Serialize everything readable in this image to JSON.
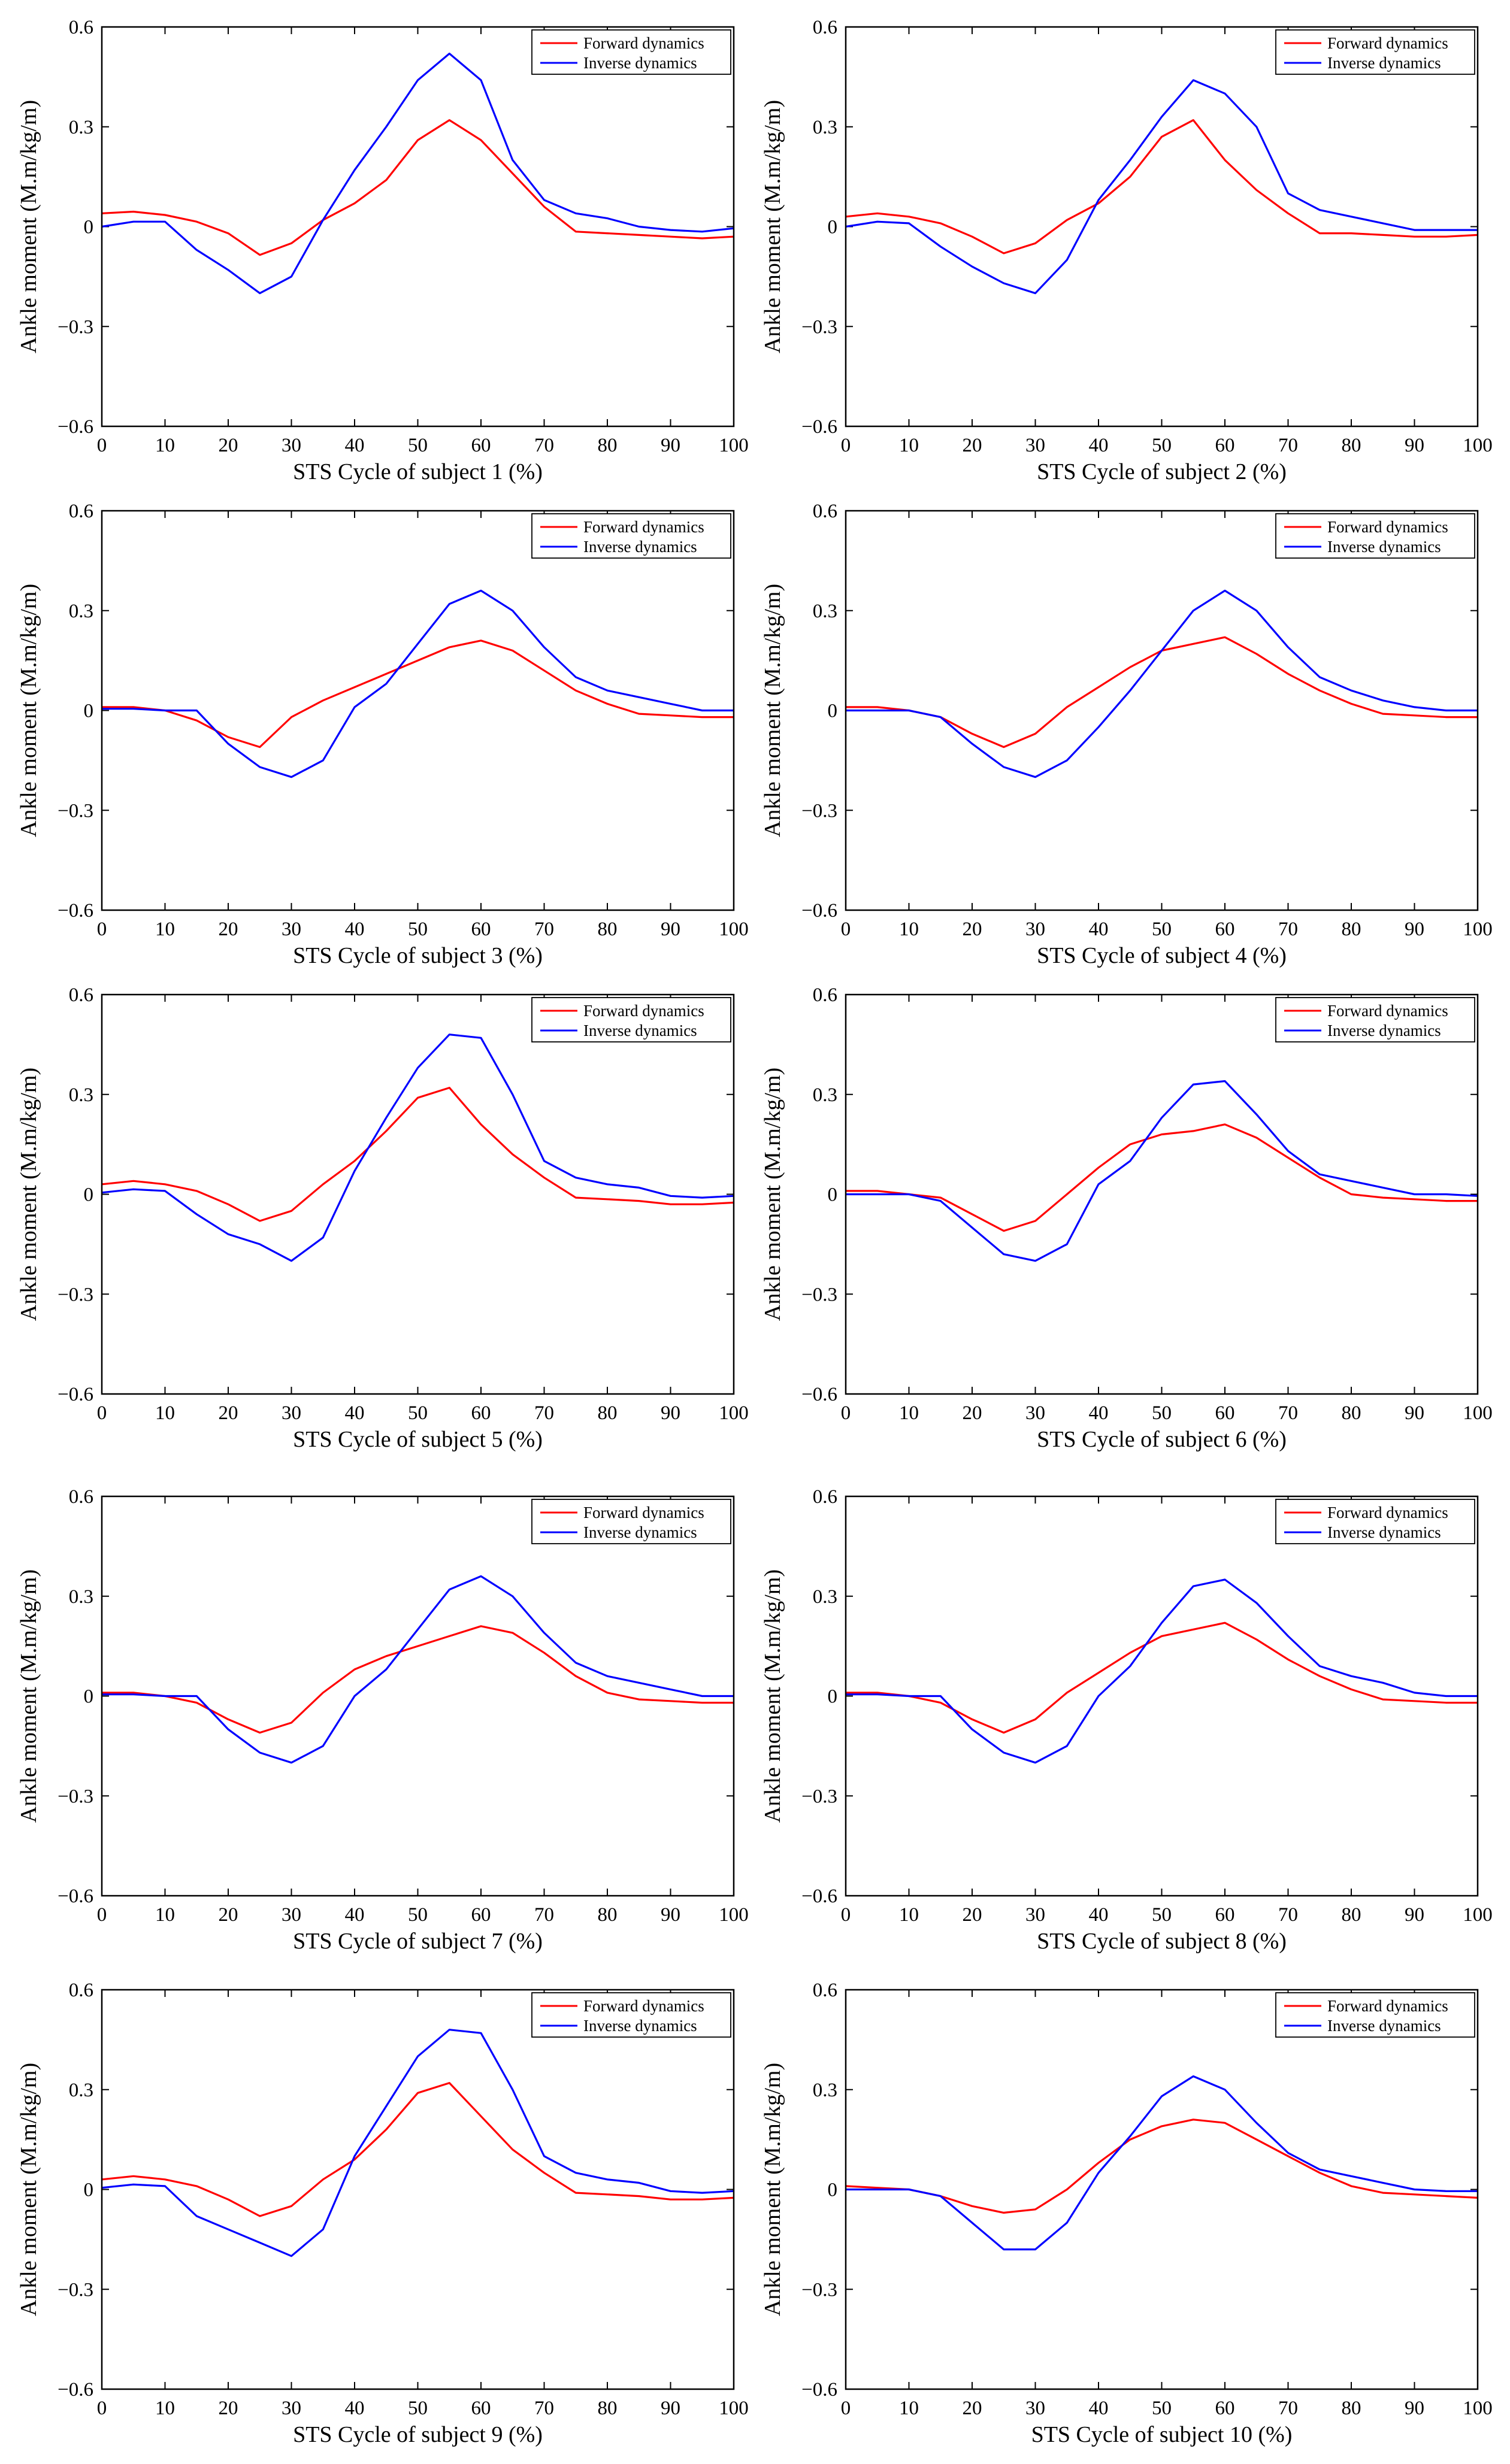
{
  "figure": {
    "ylabel": "Ankle moment (M.m/kg/m)",
    "xticks": [
      "0",
      "10",
      "20",
      "30",
      "40",
      "50",
      "60",
      "70",
      "80",
      "90",
      "100"
    ],
    "yticks": [
      "0.6",
      "0.3",
      "0",
      "−0.3",
      "−0.6"
    ],
    "legend": {
      "forward": "Forward dynamics",
      "inverse": "Inverse dynamics"
    },
    "colors": {
      "forward": "#ff0000",
      "inverse": "#0000ff",
      "axes": "#000000"
    }
  },
  "chart_data": [
    {
      "type": "line",
      "title": "",
      "xlabel": "STS Cycle of subject 1 (%)",
      "ylabel": "Ankle moment (M.m/kg/m)",
      "xlim": [
        0,
        100
      ],
      "ylim": [
        -0.6,
        0.6
      ],
      "legend_position": "top-right",
      "x": [
        0,
        5,
        10,
        15,
        20,
        25,
        30,
        35,
        40,
        45,
        50,
        55,
        60,
        65,
        70,
        75,
        80,
        85,
        90,
        95,
        100
      ],
      "series": [
        {
          "name": "Forward dynamics",
          "values": [
            0.04,
            0.045,
            0.035,
            0.015,
            -0.02,
            -0.085,
            -0.05,
            0.02,
            0.07,
            0.14,
            0.26,
            0.32,
            0.26,
            0.16,
            0.06,
            -0.015,
            -0.02,
            -0.025,
            -0.03,
            -0.035,
            -0.03
          ]
        },
        {
          "name": "Inverse dynamics",
          "values": [
            0.0,
            0.015,
            0.015,
            -0.07,
            -0.13,
            -0.2,
            -0.15,
            0.02,
            0.17,
            0.3,
            0.44,
            0.52,
            0.44,
            0.2,
            0.08,
            0.04,
            0.025,
            0.0,
            -0.01,
            -0.015,
            -0.005
          ]
        }
      ]
    },
    {
      "type": "line",
      "title": "",
      "xlabel": "STS Cycle of subject 2 (%)",
      "ylabel": "Ankle moment (M.m/kg/m)",
      "xlim": [
        0,
        100
      ],
      "ylim": [
        -0.6,
        0.6
      ],
      "legend_position": "top-right",
      "x": [
        0,
        5,
        10,
        15,
        20,
        25,
        30,
        35,
        40,
        45,
        50,
        55,
        60,
        65,
        70,
        75,
        80,
        85,
        90,
        95,
        100
      ],
      "series": [
        {
          "name": "Forward dynamics",
          "values": [
            0.03,
            0.04,
            0.03,
            0.01,
            -0.03,
            -0.08,
            -0.05,
            0.02,
            0.07,
            0.15,
            0.27,
            0.32,
            0.2,
            0.11,
            0.04,
            -0.02,
            -0.02,
            -0.025,
            -0.03,
            -0.03,
            -0.025
          ]
        },
        {
          "name": "Inverse dynamics",
          "values": [
            0.0,
            0.015,
            0.01,
            -0.06,
            -0.12,
            -0.17,
            -0.2,
            -0.1,
            0.08,
            0.2,
            0.33,
            0.44,
            0.4,
            0.3,
            0.1,
            0.05,
            0.03,
            0.01,
            -0.01,
            -0.01,
            -0.01
          ]
        }
      ]
    },
    {
      "type": "line",
      "title": "",
      "xlabel": "STS Cycle of subject 3 (%)",
      "ylabel": "Ankle moment (M.m/kg/m)",
      "xlim": [
        0,
        100
      ],
      "ylim": [
        -0.6,
        0.6
      ],
      "legend_position": "top-right",
      "x": [
        0,
        5,
        10,
        15,
        20,
        25,
        30,
        35,
        40,
        45,
        50,
        55,
        60,
        65,
        70,
        75,
        80,
        85,
        90,
        95,
        100
      ],
      "series": [
        {
          "name": "Forward dynamics",
          "values": [
            0.01,
            0.01,
            0.0,
            -0.03,
            -0.08,
            -0.11,
            -0.02,
            0.03,
            0.07,
            0.11,
            0.15,
            0.19,
            0.21,
            0.18,
            0.12,
            0.06,
            0.02,
            -0.01,
            -0.015,
            -0.02,
            -0.02
          ]
        },
        {
          "name": "Inverse dynamics",
          "values": [
            0.005,
            0.005,
            0.0,
            0.0,
            -0.1,
            -0.17,
            -0.2,
            -0.15,
            0.01,
            0.08,
            0.2,
            0.32,
            0.36,
            0.3,
            0.19,
            0.1,
            0.06,
            0.04,
            0.02,
            0.0,
            0.0
          ]
        }
      ]
    },
    {
      "type": "line",
      "title": "",
      "xlabel": "STS Cycle of subject 4 (%)",
      "ylabel": "Ankle moment (M.m/kg/m)",
      "xlim": [
        0,
        100
      ],
      "ylim": [
        -0.6,
        0.6
      ],
      "legend_position": "top-right",
      "x": [
        0,
        5,
        10,
        15,
        20,
        25,
        30,
        35,
        40,
        45,
        50,
        55,
        60,
        65,
        70,
        75,
        80,
        85,
        90,
        95,
        100
      ],
      "series": [
        {
          "name": "Forward dynamics",
          "values": [
            0.01,
            0.01,
            0.0,
            -0.02,
            -0.07,
            -0.11,
            -0.07,
            0.01,
            0.07,
            0.13,
            0.18,
            0.2,
            0.22,
            0.17,
            0.11,
            0.06,
            0.02,
            -0.01,
            -0.015,
            -0.02,
            -0.02
          ]
        },
        {
          "name": "Inverse dynamics",
          "values": [
            0.0,
            0.0,
            0.0,
            -0.02,
            -0.1,
            -0.17,
            -0.2,
            -0.15,
            -0.05,
            0.06,
            0.18,
            0.3,
            0.36,
            0.3,
            0.19,
            0.1,
            0.06,
            0.03,
            0.01,
            0.0,
            0.0
          ]
        }
      ]
    },
    {
      "type": "line",
      "title": "",
      "xlabel": "STS Cycle of subject 5 (%)",
      "ylabel": "Ankle moment (M.m/kg/m)",
      "xlim": [
        0,
        100
      ],
      "ylim": [
        -0.6,
        0.6
      ],
      "legend_position": "top-right",
      "x": [
        0,
        5,
        10,
        15,
        20,
        25,
        30,
        35,
        40,
        45,
        50,
        55,
        60,
        65,
        70,
        75,
        80,
        85,
        90,
        95,
        100
      ],
      "series": [
        {
          "name": "Forward dynamics",
          "values": [
            0.03,
            0.04,
            0.03,
            0.01,
            -0.03,
            -0.08,
            -0.05,
            0.03,
            0.1,
            0.19,
            0.29,
            0.32,
            0.21,
            0.12,
            0.05,
            -0.01,
            -0.015,
            -0.02,
            -0.03,
            -0.03,
            -0.025
          ]
        },
        {
          "name": "Inverse dynamics",
          "values": [
            0.005,
            0.015,
            0.01,
            -0.06,
            -0.12,
            -0.15,
            -0.2,
            -0.13,
            0.07,
            0.23,
            0.38,
            0.48,
            0.47,
            0.3,
            0.1,
            0.05,
            0.03,
            0.02,
            -0.005,
            -0.01,
            -0.005
          ]
        }
      ]
    },
    {
      "type": "line",
      "title": "",
      "xlabel": "STS Cycle of subject 6 (%)",
      "ylabel": "Ankle moment (M.m/kg/m)",
      "xlim": [
        0,
        100
      ],
      "ylim": [
        -0.6,
        0.6
      ],
      "legend_position": "top-right",
      "x": [
        0,
        5,
        10,
        15,
        20,
        25,
        30,
        35,
        40,
        45,
        50,
        55,
        60,
        65,
        70,
        75,
        80,
        85,
        90,
        95,
        100
      ],
      "series": [
        {
          "name": "Forward dynamics",
          "values": [
            0.01,
            0.01,
            0.0,
            -0.01,
            -0.06,
            -0.11,
            -0.08,
            0.0,
            0.08,
            0.15,
            0.18,
            0.19,
            0.21,
            0.17,
            0.11,
            0.05,
            0.0,
            -0.01,
            -0.015,
            -0.02,
            -0.02
          ]
        },
        {
          "name": "Inverse dynamics",
          "values": [
            0.0,
            0.0,
            0.0,
            -0.02,
            -0.1,
            -0.18,
            -0.2,
            -0.15,
            0.03,
            0.1,
            0.23,
            0.33,
            0.34,
            0.24,
            0.13,
            0.06,
            0.04,
            0.02,
            0.0,
            0.0,
            -0.005
          ]
        }
      ]
    },
    {
      "type": "line",
      "title": "",
      "xlabel": "STS Cycle of subject 7 (%)",
      "ylabel": "Ankle moment (M.m/kg/m)",
      "xlim": [
        0,
        100
      ],
      "ylim": [
        -0.6,
        0.6
      ],
      "legend_position": "top-right",
      "x": [
        0,
        5,
        10,
        15,
        20,
        25,
        30,
        35,
        40,
        45,
        50,
        55,
        60,
        65,
        70,
        75,
        80,
        85,
        90,
        95,
        100
      ],
      "series": [
        {
          "name": "Forward dynamics",
          "values": [
            0.01,
            0.01,
            0.0,
            -0.02,
            -0.07,
            -0.11,
            -0.08,
            0.01,
            0.08,
            0.12,
            0.15,
            0.18,
            0.21,
            0.19,
            0.13,
            0.06,
            0.01,
            -0.01,
            -0.015,
            -0.02,
            -0.02
          ]
        },
        {
          "name": "Inverse dynamics",
          "values": [
            0.005,
            0.005,
            0.0,
            0.0,
            -0.1,
            -0.17,
            -0.2,
            -0.15,
            0.0,
            0.08,
            0.2,
            0.32,
            0.36,
            0.3,
            0.19,
            0.1,
            0.06,
            0.04,
            0.02,
            0.0,
            0.0
          ]
        }
      ]
    },
    {
      "type": "line",
      "title": "",
      "xlabel": "STS Cycle of subject 8 (%)",
      "ylabel": "Ankle moment (M.m/kg/m)",
      "xlim": [
        0,
        100
      ],
      "ylim": [
        -0.6,
        0.6
      ],
      "legend_position": "top-right",
      "x": [
        0,
        5,
        10,
        15,
        20,
        25,
        30,
        35,
        40,
        45,
        50,
        55,
        60,
        65,
        70,
        75,
        80,
        85,
        90,
        95,
        100
      ],
      "series": [
        {
          "name": "Forward dynamics",
          "values": [
            0.01,
            0.01,
            0.0,
            -0.02,
            -0.07,
            -0.11,
            -0.07,
            0.01,
            0.07,
            0.13,
            0.18,
            0.2,
            0.22,
            0.17,
            0.11,
            0.06,
            0.02,
            -0.01,
            -0.015,
            -0.02,
            -0.02
          ]
        },
        {
          "name": "Inverse dynamics",
          "values": [
            0.005,
            0.005,
            0.0,
            0.0,
            -0.1,
            -0.17,
            -0.2,
            -0.15,
            0.0,
            0.09,
            0.22,
            0.33,
            0.35,
            0.28,
            0.18,
            0.09,
            0.06,
            0.04,
            0.01,
            0.0,
            0.0
          ]
        }
      ]
    },
    {
      "type": "line",
      "title": "",
      "xlabel": "STS Cycle of subject 9 (%)",
      "ylabel": "Ankle moment (M.m/kg/m)",
      "xlim": [
        0,
        100
      ],
      "ylim": [
        -0.6,
        0.6
      ],
      "legend_position": "top-right",
      "x": [
        0,
        5,
        10,
        15,
        20,
        25,
        30,
        35,
        40,
        45,
        50,
        55,
        60,
        65,
        70,
        75,
        80,
        85,
        90,
        95,
        100
      ],
      "series": [
        {
          "name": "Forward dynamics",
          "values": [
            0.03,
            0.04,
            0.03,
            0.01,
            -0.03,
            -0.08,
            -0.05,
            0.03,
            0.09,
            0.18,
            0.29,
            0.32,
            0.22,
            0.12,
            0.05,
            -0.01,
            -0.015,
            -0.02,
            -0.03,
            -0.03,
            -0.025
          ]
        },
        {
          "name": "Inverse dynamics",
          "values": [
            0.005,
            0.015,
            0.01,
            -0.08,
            -0.12,
            -0.16,
            -0.2,
            -0.12,
            0.1,
            0.25,
            0.4,
            0.48,
            0.47,
            0.3,
            0.1,
            0.05,
            0.03,
            0.02,
            -0.005,
            -0.01,
            -0.005
          ]
        }
      ]
    },
    {
      "type": "line",
      "title": "",
      "xlabel": "STS Cycle of subject 10 (%)",
      "ylabel": "Ankle moment (M.m/kg/m)",
      "xlim": [
        0,
        100
      ],
      "ylim": [
        -0.6,
        0.6
      ],
      "legend_position": "top-right",
      "x": [
        0,
        5,
        10,
        15,
        20,
        25,
        30,
        35,
        40,
        45,
        50,
        55,
        60,
        65,
        70,
        75,
        80,
        85,
        90,
        95,
        100
      ],
      "series": [
        {
          "name": "Forward dynamics",
          "values": [
            0.01,
            0.005,
            0.0,
            -0.02,
            -0.05,
            -0.07,
            -0.06,
            0.0,
            0.08,
            0.15,
            0.19,
            0.21,
            0.2,
            0.15,
            0.1,
            0.05,
            0.01,
            -0.01,
            -0.015,
            -0.02,
            -0.025
          ]
        },
        {
          "name": "Inverse dynamics",
          "values": [
            0.0,
            0.0,
            0.0,
            -0.02,
            -0.1,
            -0.18,
            -0.18,
            -0.1,
            0.05,
            0.16,
            0.28,
            0.34,
            0.3,
            0.2,
            0.11,
            0.06,
            0.04,
            0.02,
            0.0,
            -0.005,
            -0.005
          ]
        }
      ]
    }
  ]
}
